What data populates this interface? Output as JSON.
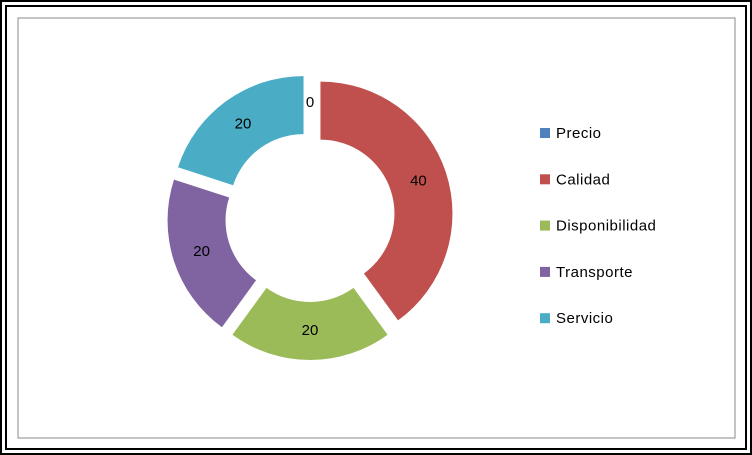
{
  "chart_data": {
    "type": "doughnut",
    "categories": [
      "Precio",
      "Calidad",
      "Disponibilidad",
      "Transporte",
      "Servicio"
    ],
    "values": [
      0,
      40,
      20,
      20,
      20
    ],
    "colors": [
      "#4f81bd",
      "#c0504d",
      "#9bbb59",
      "#8064a2",
      "#4bacc6"
    ],
    "legend": "right",
    "exploded": true
  }
}
